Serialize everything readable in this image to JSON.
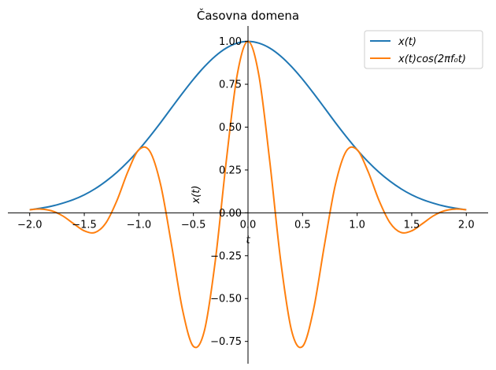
{
  "chart_data": {
    "type": "line",
    "title": "Časovna domena",
    "xlabel": "t",
    "ylabel": "x(t)",
    "xlim": [
      -2.2,
      2.2
    ],
    "ylim": [
      -0.88,
      1.09
    ],
    "x_ticks": [
      -2.0,
      -1.5,
      -1.0,
      -0.5,
      0.0,
      0.5,
      1.0,
      1.5,
      2.0
    ],
    "x_tick_labels": [
      "−2.0",
      "−1.5",
      "−1.0",
      "−0.5",
      "0.0",
      "0.5",
      "1.0",
      "1.5",
      "2.0"
    ],
    "y_ticks": [
      -0.75,
      -0.5,
      -0.25,
      0.0,
      0.25,
      0.5,
      0.75,
      1.0
    ],
    "y_tick_labels": [
      "−0.75",
      "−0.50",
      "−0.25",
      "0.00",
      "0.25",
      "0.50",
      "0.75",
      "1.00"
    ],
    "grid": false,
    "legend": "top-right",
    "series": [
      {
        "name": "x(t)",
        "color": "#1f77b4",
        "x": [
          -2.0,
          -1.9,
          -1.8,
          -1.7,
          -1.6,
          -1.5,
          -1.4,
          -1.3,
          -1.2,
          -1.1,
          -1.0,
          -0.9,
          -0.8,
          -0.7,
          -0.6,
          -0.5,
          -0.4,
          -0.3,
          -0.2,
          -0.1,
          0.0,
          0.1,
          0.2,
          0.3,
          0.4,
          0.5,
          0.6,
          0.7,
          0.8,
          0.9,
          1.0,
          1.1,
          1.2,
          1.3,
          1.4,
          1.5,
          1.6,
          1.7,
          1.8,
          1.9,
          2.0
        ],
        "values": [
          0.018,
          0.027,
          0.039,
          0.056,
          0.077,
          0.105,
          0.141,
          0.185,
          0.237,
          0.298,
          0.368,
          0.445,
          0.527,
          0.613,
          0.698,
          0.779,
          0.852,
          0.914,
          0.961,
          0.99,
          1.0,
          0.99,
          0.961,
          0.914,
          0.852,
          0.779,
          0.698,
          0.613,
          0.527,
          0.445,
          0.368,
          0.298,
          0.237,
          0.185,
          0.141,
          0.105,
          0.077,
          0.056,
          0.039,
          0.027,
          0.018
        ]
      },
      {
        "name": "x(t)cos(2πf₀t)",
        "color": "#ff7f0e",
        "x": [
          -2.0,
          -1.9,
          -1.8,
          -1.7,
          -1.6,
          -1.5,
          -1.4,
          -1.3,
          -1.2,
          -1.1,
          -1.0,
          -0.9,
          -0.8,
          -0.7,
          -0.6,
          -0.5,
          -0.4,
          -0.3,
          -0.2,
          -0.1,
          0.0,
          0.1,
          0.2,
          0.3,
          0.4,
          0.5,
          0.6,
          0.7,
          0.8,
          0.9,
          1.0,
          1.1,
          1.2,
          1.3,
          1.4,
          1.5,
          1.6,
          1.7,
          1.8,
          1.9,
          2.0
        ],
        "values": [
          0.018,
          0.022,
          0.012,
          -0.017,
          -0.062,
          -0.105,
          -0.114,
          -0.057,
          0.073,
          0.241,
          0.368,
          0.36,
          0.163,
          -0.189,
          -0.565,
          -0.779,
          -0.689,
          -0.282,
          0.297,
          0.801,
          1.0,
          0.801,
          0.297,
          -0.282,
          -0.689,
          -0.779,
          -0.565,
          -0.189,
          0.163,
          0.36,
          0.368,
          0.241,
          0.073,
          -0.057,
          -0.114,
          -0.105,
          -0.062,
          -0.017,
          0.012,
          0.022,
          0.018
        ]
      }
    ]
  }
}
